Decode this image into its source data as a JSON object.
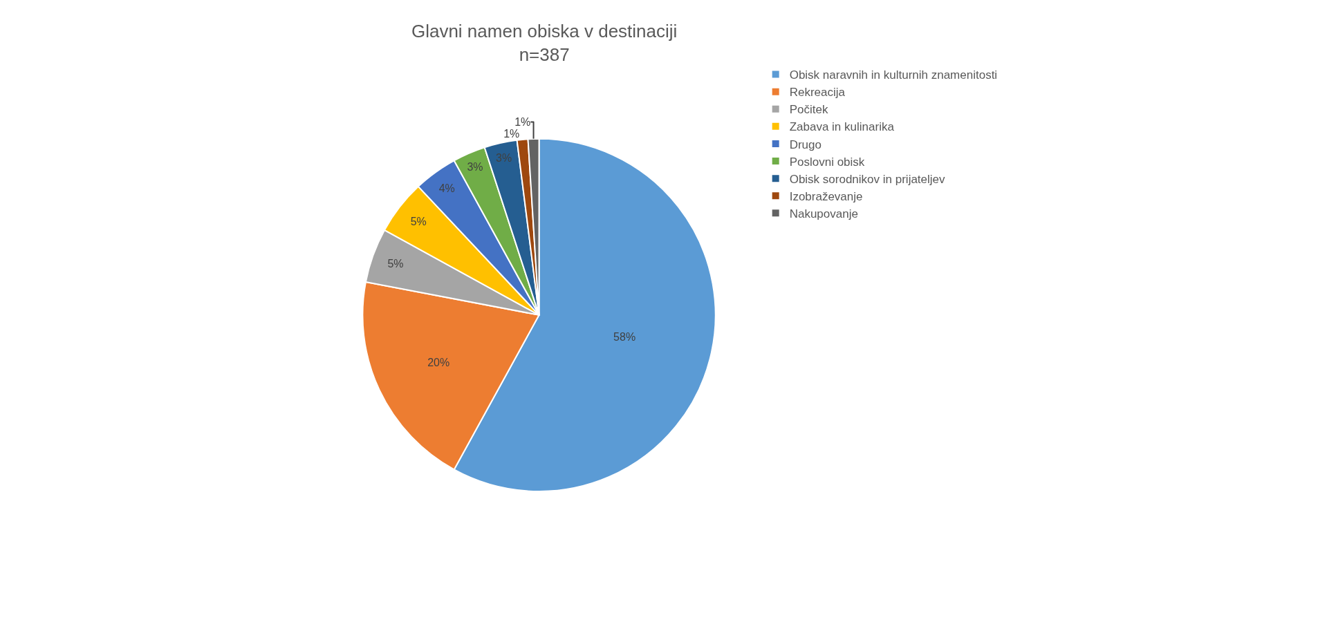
{
  "chart_data": {
    "type": "pie",
    "title": "Glavni namen obiska v destinaciji",
    "subtitle": "n=387",
    "categories": [
      "Obisk naravnih in kulturnih znamenitosti",
      "Rekreacija",
      "Počitek",
      "Zabava in kulinarika",
      "Drugo",
      "Poslovni obisk",
      "Obisk sorodnikov in prijateljev",
      "Izobraževanje",
      "Nakupovanje"
    ],
    "values": [
      58,
      20,
      5,
      5,
      4,
      3,
      3,
      1,
      1
    ],
    "colors": [
      "#5b9bd5",
      "#ed7d31",
      "#a5a5a5",
      "#ffc000",
      "#4472c4",
      "#70ad47",
      "#255e91",
      "#9e480e",
      "#636363"
    ],
    "value_labels": [
      "58%",
      "20%",
      "5%",
      "5%",
      "4%",
      "3%",
      "3%",
      "1%",
      "1%"
    ],
    "legend": "right"
  }
}
